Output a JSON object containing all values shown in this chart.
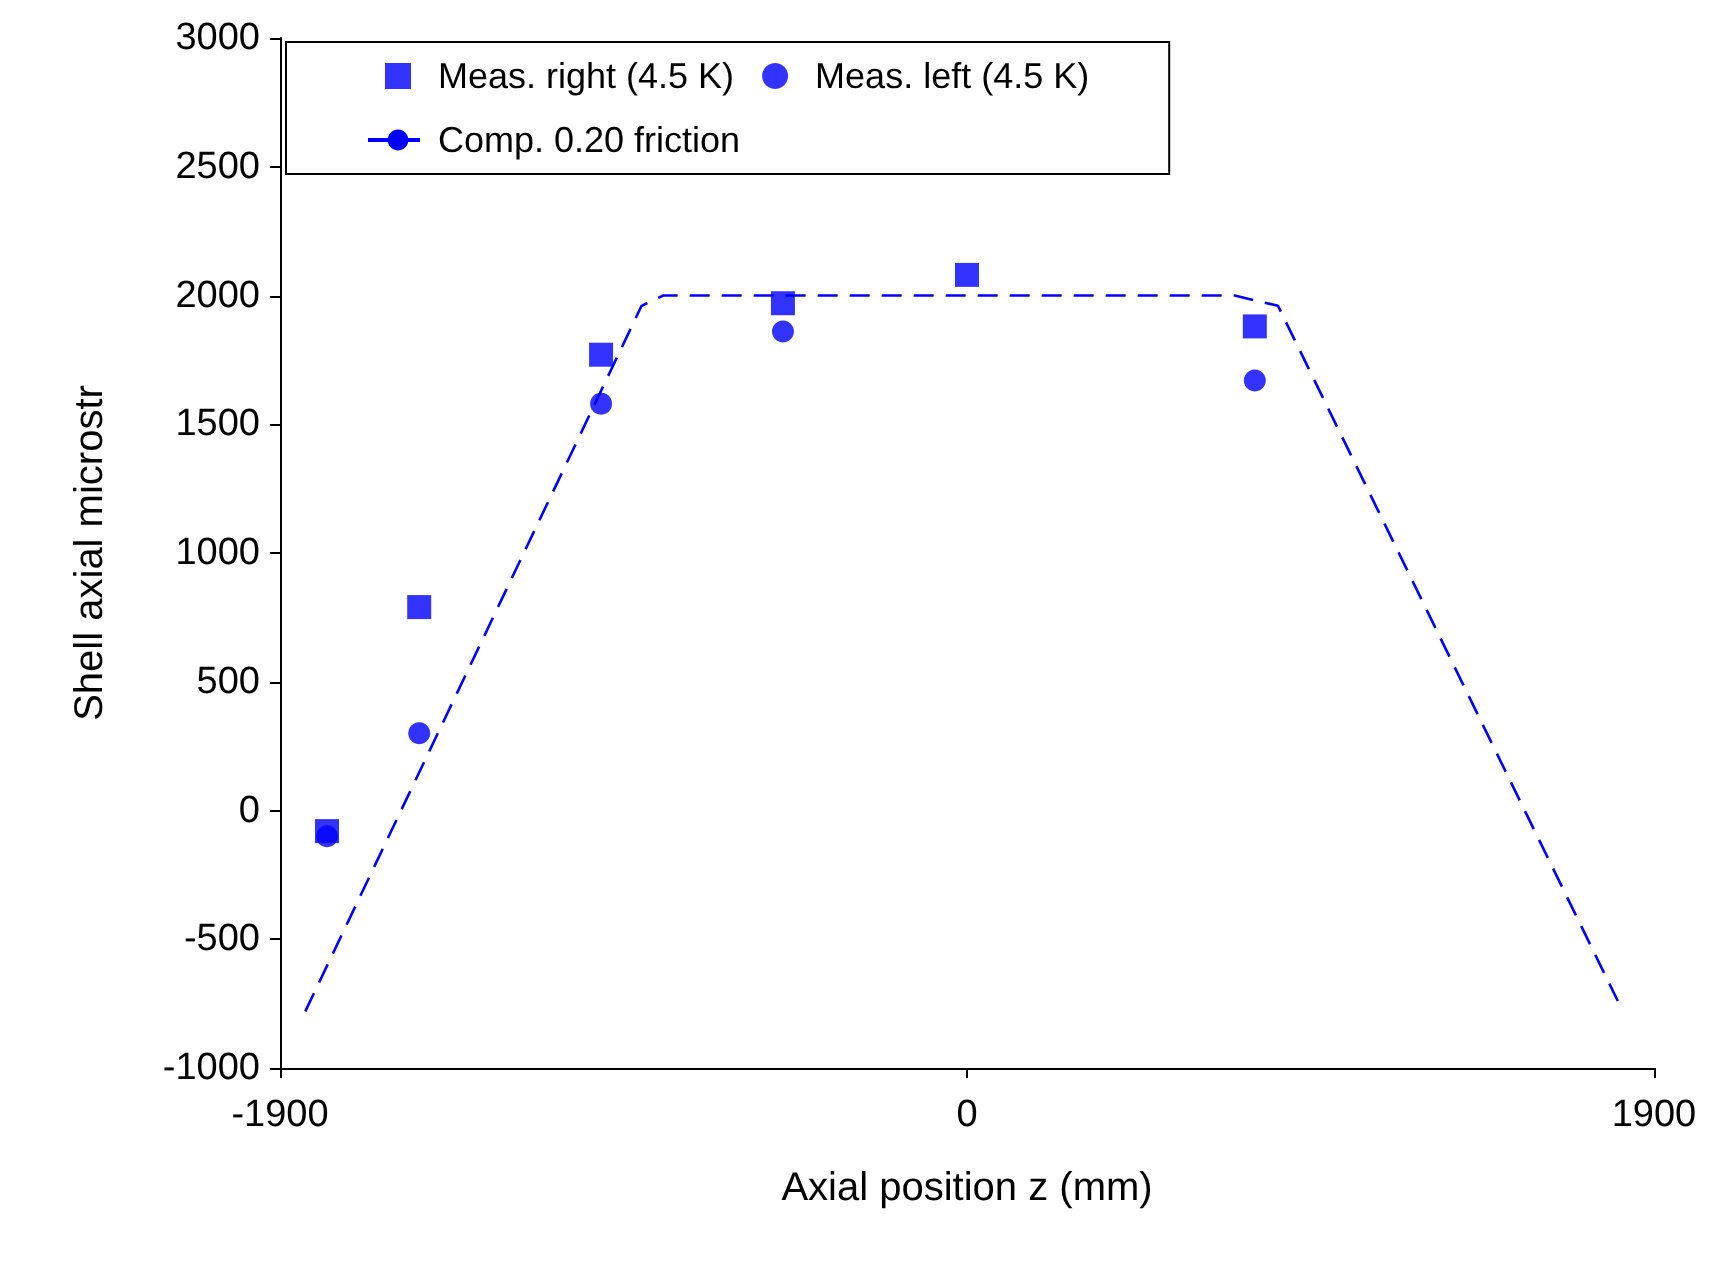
{
  "chart_data": {
    "type": "scatter",
    "xlabel": "Axial position z (mm)",
    "ylabel": "Shell axial microstr",
    "xlim": [
      -1900,
      1900
    ],
    "xticks": [
      -1900,
      0,
      1900
    ],
    "ylim": [
      -1000,
      3000
    ],
    "yticks": [
      -1000,
      -500,
      0,
      500,
      1000,
      1500,
      2000,
      2500,
      3000
    ],
    "grid": false,
    "legend": "top",
    "series": [
      {
        "name": "Meas. right (4.5 K)",
        "color": "#0000ff",
        "marker": "square",
        "x": [
          -1770,
          -1515,
          -1012,
          -509,
          0,
          796
        ],
        "values": [
          -80,
          790,
          1770,
          1970,
          2080,
          1880
        ]
      },
      {
        "name": "Meas. left (4.5 K)",
        "color": "#0000ff",
        "marker": "circle",
        "x": [
          -1770,
          -1515,
          -1012,
          -509,
          796
        ],
        "values": [
          -100,
          300,
          1580,
          1860,
          1670
        ]
      },
      {
        "name": "Comp. 0.20 friction",
        "type": "line",
        "color": "#0000ff",
        "marker": "none",
        "line_style": "dashed",
        "x": [
          -1830,
          -900,
          -840,
          740,
          860,
          1800
        ],
        "values": [
          -780,
          1960,
          2000,
          2000,
          1960,
          -740
        ]
      }
    ]
  }
}
